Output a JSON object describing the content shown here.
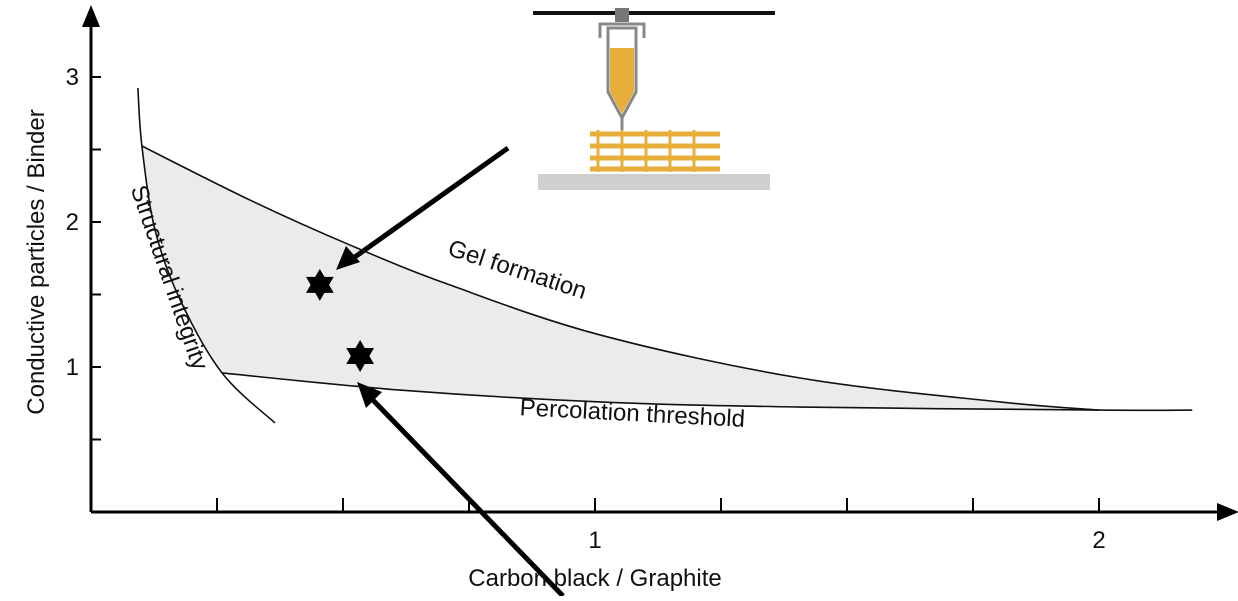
{
  "chart_data": {
    "type": "region",
    "xlabel": "Carbon black / Graphite",
    "ylabel": "Conductive particles / Binder",
    "xlim": [
      0,
      2.25
    ],
    "ylim": [
      0,
      3.4
    ],
    "xticks": [
      1,
      2
    ],
    "yticks": [
      1,
      2,
      3
    ],
    "xminorticks": [
      0.25,
      0.5,
      0.75,
      1.25,
      1.5,
      1.75
    ],
    "yminorticks": [
      0.5,
      1.5,
      2.5
    ],
    "region_color": "#ebebeb",
    "curves": [
      {
        "label": "Gel formation",
        "x": [
          0.101,
          0.315,
          0.514,
          0.712,
          1.01,
          1.407,
          1.804,
          2.0
        ],
        "y": [
          2.524,
          2.152,
          1.841,
          1.566,
          1.221,
          0.924,
          0.759,
          0.703
        ]
      },
      {
        "label": "Percolation threshold",
        "x": [
          0.26,
          0.613,
          1.01,
          1.407,
          2.0,
          2.185
        ],
        "y": [
          0.959,
          0.841,
          0.759,
          0.724,
          0.703,
          0.703
        ]
      },
      {
        "label": "Structural integrity",
        "x": [
          0.093,
          0.101,
          0.127,
          0.177,
          0.26,
          0.365
        ],
        "y": [
          2.924,
          2.524,
          1.945,
          1.462,
          0.959,
          0.614
        ]
      }
    ],
    "stars": {
      "x": [
        0.454,
        0.534
      ],
      "y": [
        1.566,
        1.076
      ]
    }
  }
}
